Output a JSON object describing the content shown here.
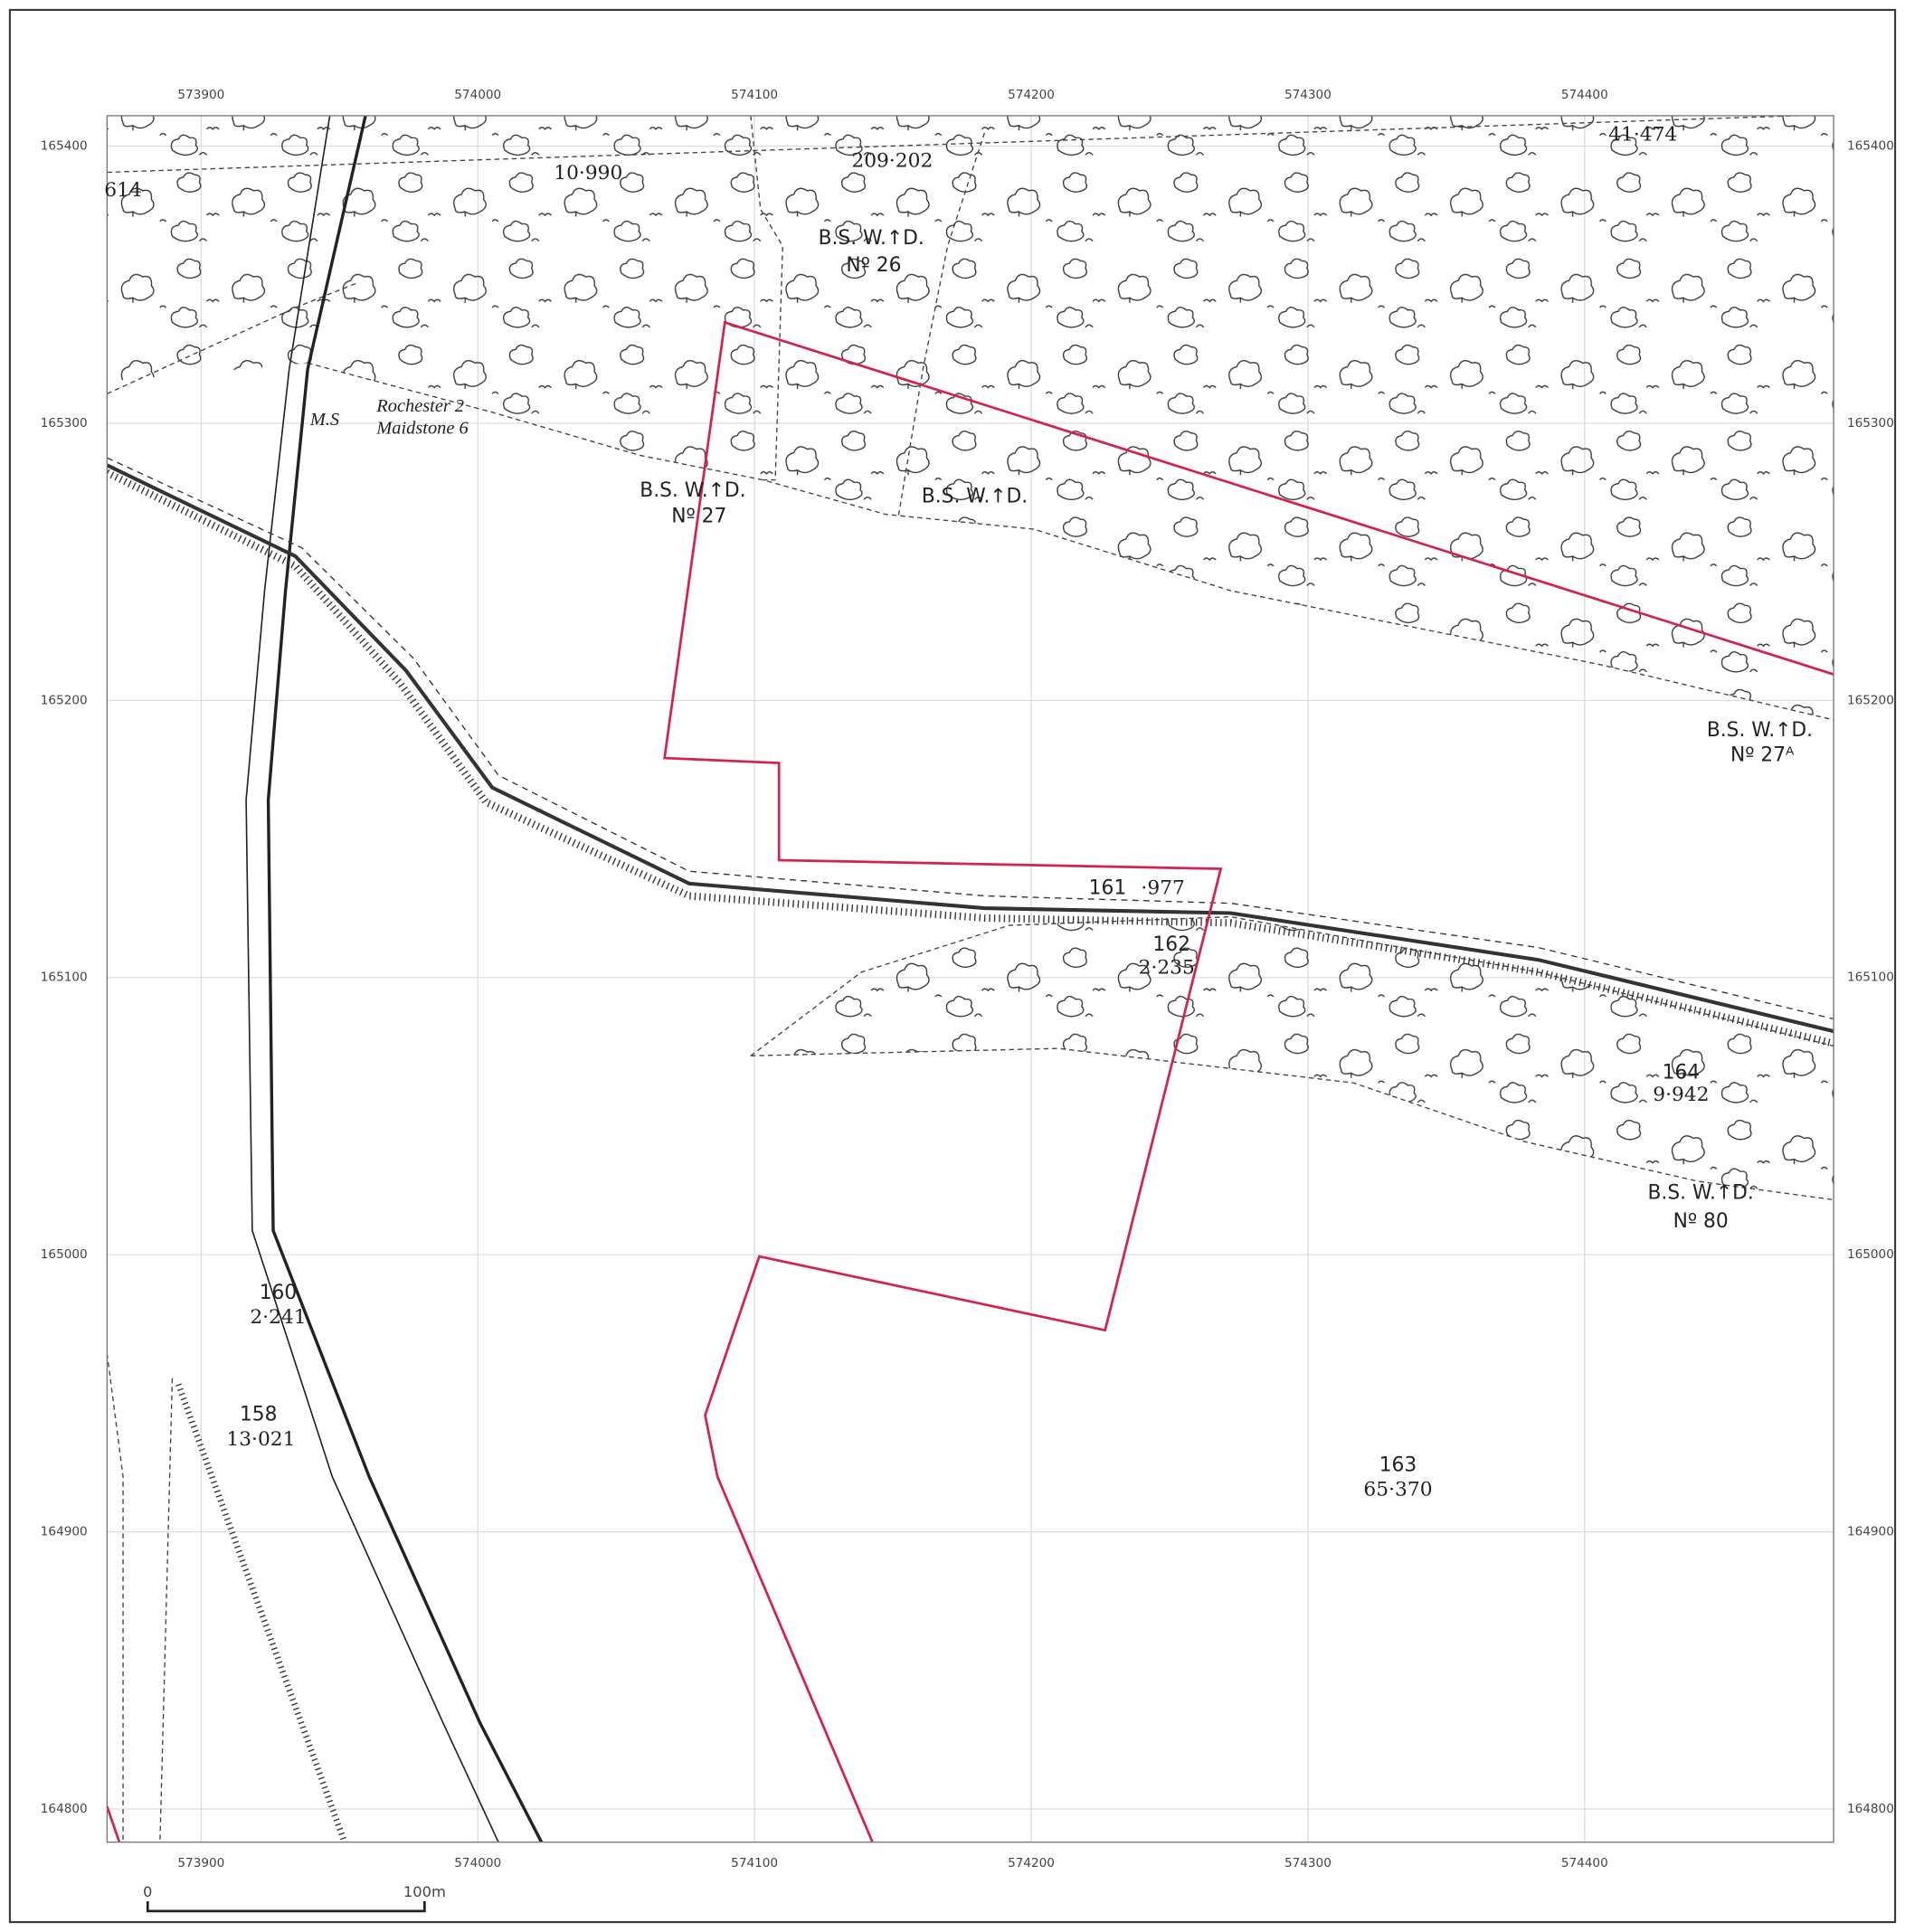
{
  "grid": {
    "eastings": [
      573900,
      574000,
      574100,
      574200,
      574300,
      574400
    ],
    "northings": [
      165400,
      165300,
      165200,
      165100,
      165000,
      164900,
      164800
    ],
    "xlim": [
      573866,
      574490
    ],
    "ylim": [
      164788,
      165411
    ]
  },
  "labels": [
    "614",
    "10·990",
    "209·202",
    "41·474",
    "B.S. W.↑D.",
    "Nº 26",
    "M.S",
    "Rochester 2",
    "Maidstone 6",
    "B.S. W.↑D.",
    "Nº 27",
    "B.S. W.↑D.",
    "B.S. W.↑D.",
    "Nº 27ᴬ",
    "161",
    "·977",
    "162",
    "2·235",
    "164",
    "9·942",
    "B.S. W.↑D.",
    "Nº 80",
    "160",
    "2·241",
    "158",
    "13·021",
    "163",
    "65·370"
  ],
  "scale_bar": {
    "labels": [
      "0",
      "100m"
    ]
  }
}
